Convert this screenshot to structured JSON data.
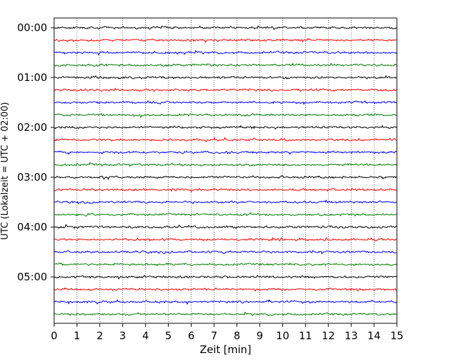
{
  "chart_data": {
    "type": "line",
    "title": "",
    "xlabel": "Zeit  [min]",
    "ylabel": "UTC (Lokalzeit = UTC + 02:00)",
    "xlim": [
      0,
      15
    ],
    "x_ticks": [
      "0",
      "1",
      "2",
      "3",
      "4",
      "5",
      "6",
      "7",
      "8",
      "9",
      "10",
      "11",
      "12",
      "13",
      "14",
      "15"
    ],
    "y_tick_labels": [
      "00:00",
      "01:00",
      "02:00",
      "03:00",
      "04:00",
      "05:00"
    ],
    "trace_interval_min": 15,
    "trace_count": 24,
    "trace_colors": [
      "#000000",
      "#ff0000",
      "#0000ff",
      "#008000"
    ],
    "grid": "vertical-dotted",
    "series": [
      {
        "start": "00:00",
        "color": "#000000"
      },
      {
        "start": "00:15",
        "color": "#ff0000"
      },
      {
        "start": "00:30",
        "color": "#0000ff"
      },
      {
        "start": "00:45",
        "color": "#008000"
      },
      {
        "start": "01:00",
        "color": "#000000"
      },
      {
        "start": "01:15",
        "color": "#ff0000"
      },
      {
        "start": "01:30",
        "color": "#0000ff"
      },
      {
        "start": "01:45",
        "color": "#008000"
      },
      {
        "start": "02:00",
        "color": "#000000"
      },
      {
        "start": "02:15",
        "color": "#ff0000"
      },
      {
        "start": "02:30",
        "color": "#0000ff"
      },
      {
        "start": "02:45",
        "color": "#008000"
      },
      {
        "start": "03:00",
        "color": "#000000"
      },
      {
        "start": "03:15",
        "color": "#ff0000"
      },
      {
        "start": "03:30",
        "color": "#0000ff"
      },
      {
        "start": "03:45",
        "color": "#008000"
      },
      {
        "start": "04:00",
        "color": "#000000"
      },
      {
        "start": "04:15",
        "color": "#ff0000"
      },
      {
        "start": "04:30",
        "color": "#0000ff"
      },
      {
        "start": "04:45",
        "color": "#008000"
      },
      {
        "start": "05:00",
        "color": "#000000"
      },
      {
        "start": "05:15",
        "color": "#ff0000"
      },
      {
        "start": "05:30",
        "color": "#0000ff"
      },
      {
        "start": "05:45",
        "color": "#008000"
      }
    ]
  }
}
